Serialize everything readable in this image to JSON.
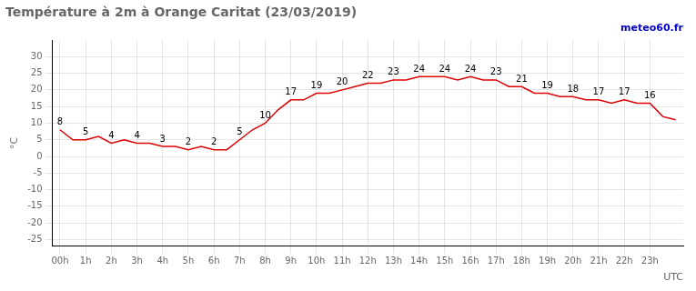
{
  "chart_data": {
    "type": "line",
    "title": "Température à 2m à Orange Caritat (23/03/2019)",
    "xlabel": "UTC",
    "ylabel": "°C",
    "watermark": {
      "text": "meteo60.fr",
      "color": "#0000cc"
    },
    "x": [
      0,
      0.5,
      1,
      1.5,
      2,
      2.5,
      3,
      3.5,
      4,
      4.5,
      5,
      5.5,
      6,
      6.5,
      7,
      7.5,
      8,
      8.5,
      9,
      9.5,
      10,
      10.5,
      11,
      11.5,
      12,
      12.5,
      13,
      13.5,
      14,
      14.5,
      15,
      15.5,
      16,
      16.5,
      17,
      17.5,
      18,
      18.5,
      19,
      19.5,
      20,
      20.5,
      21,
      21.5,
      22,
      22.5,
      23,
      23.5,
      24
    ],
    "values": [
      8,
      5,
      5,
      6,
      4,
      5,
      4,
      4,
      3,
      3,
      2,
      3,
      2,
      2,
      5,
      8,
      10,
      14,
      17,
      17,
      19,
      19,
      20,
      21,
      22,
      22,
      23,
      23,
      24,
      24,
      24,
      23,
      24,
      23,
      23,
      21,
      21,
      19,
      19,
      18,
      18,
      17,
      17,
      16,
      17,
      16,
      16,
      12,
      11
    ],
    "color": "#dd0000",
    "annotations": [
      {
        "x": 0,
        "y": 8,
        "text": "8"
      },
      {
        "x": 1,
        "y": 5,
        "text": "5"
      },
      {
        "x": 2,
        "y": 4,
        "text": "4"
      },
      {
        "x": 3,
        "y": 4,
        "text": "4"
      },
      {
        "x": 4,
        "y": 3,
        "text": "3"
      },
      {
        "x": 5,
        "y": 2,
        "text": "2"
      },
      {
        "x": 6,
        "y": 2,
        "text": "2"
      },
      {
        "x": 7,
        "y": 5,
        "text": "5"
      },
      {
        "x": 8,
        "y": 10,
        "text": "10"
      },
      {
        "x": 9,
        "y": 17,
        "text": "17"
      },
      {
        "x": 10,
        "y": 19,
        "text": "19"
      },
      {
        "x": 11,
        "y": 20,
        "text": "20"
      },
      {
        "x": 12,
        "y": 22,
        "text": "22"
      },
      {
        "x": 13,
        "y": 23,
        "text": "23"
      },
      {
        "x": 14,
        "y": 24,
        "text": "24"
      },
      {
        "x": 15,
        "y": 24,
        "text": "24"
      },
      {
        "x": 16,
        "y": 24,
        "text": "24"
      },
      {
        "x": 17,
        "y": 23,
        "text": "23"
      },
      {
        "x": 18,
        "y": 21,
        "text": "21"
      },
      {
        "x": 19,
        "y": 19,
        "text": "19"
      },
      {
        "x": 20,
        "y": 18,
        "text": "18"
      },
      {
        "x": 21,
        "y": 17,
        "text": "17"
      },
      {
        "x": 22,
        "y": 17,
        "text": "17"
      },
      {
        "x": 23,
        "y": 16,
        "text": "16"
      }
    ],
    "xlim": [
      -0.3,
      24.3
    ],
    "xticks": [
      {
        "value": 0,
        "label": "00h"
      },
      {
        "value": 1,
        "label": "1h"
      },
      {
        "value": 2,
        "label": "2h"
      },
      {
        "value": 3,
        "label": "3h"
      },
      {
        "value": 4,
        "label": "4h"
      },
      {
        "value": 5,
        "label": "5h"
      },
      {
        "value": 6,
        "label": "6h"
      },
      {
        "value": 7,
        "label": "7h"
      },
      {
        "value": 8,
        "label": "8h"
      },
      {
        "value": 9,
        "label": "9h"
      },
      {
        "value": 10,
        "label": "10h"
      },
      {
        "value": 11,
        "label": "11h"
      },
      {
        "value": 12,
        "label": "12h"
      },
      {
        "value": 13,
        "label": "13h"
      },
      {
        "value": 14,
        "label": "14h"
      },
      {
        "value": 15,
        "label": "15h"
      },
      {
        "value": 16,
        "label": "16h"
      },
      {
        "value": 17,
        "label": "17h"
      },
      {
        "value": 18,
        "label": "18h"
      },
      {
        "value": 19,
        "label": "19h"
      },
      {
        "value": 20,
        "label": "20h"
      },
      {
        "value": 21,
        "label": "21h"
      },
      {
        "value": 22,
        "label": "22h"
      },
      {
        "value": 23,
        "label": "23h"
      }
    ],
    "ylim": [
      -27,
      35
    ],
    "yticks": [
      -25,
      -20,
      -15,
      -10,
      -5,
      0,
      5,
      10,
      15,
      20,
      25,
      30
    ],
    "grid": true
  }
}
